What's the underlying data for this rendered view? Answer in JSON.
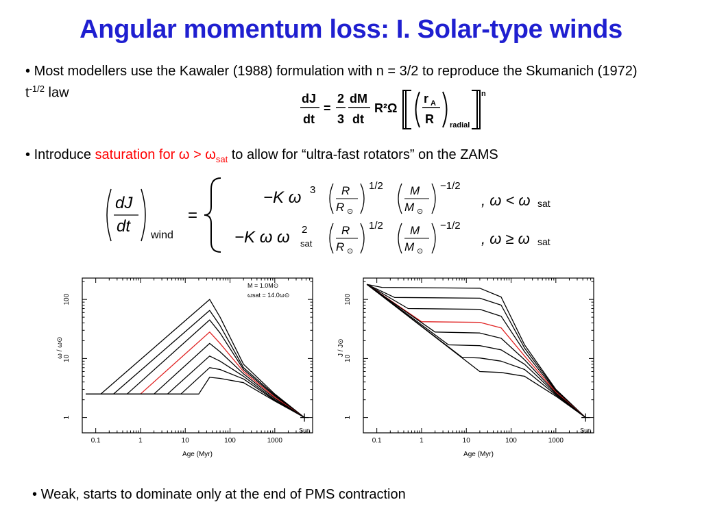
{
  "slide": {
    "title": "Angular momentum loss: I. Solar-type winds",
    "title_color": "#1f1fd0",
    "bullet1": {
      "marker": "•",
      "text": "Most modellers use the Kawaler (1988) formulation with n = 3/2 to reproduce the Skumanich (1972) t",
      "superscript": "-1/2",
      "suffix": " law"
    },
    "bullet2": {
      "marker": "•",
      "prefix": "Introduce ",
      "highlight": "saturation for ω > ω",
      "highlight_sub": "sat",
      "suffix": " to allow for “ultra-fast rotators” on the ZAMS",
      "highlight_color": "#ff0000"
    },
    "bullet3": {
      "marker": "•",
      "text": "Weak, starts to dominate only at the end of  PMS contraction"
    }
  },
  "equation1": {
    "lhs_num": "dJ",
    "lhs_den": "dt",
    "eq": "=",
    "c_num": "2",
    "c_den": "3",
    "dm_num": "dM",
    "dm_den": "dt",
    "r2omega": "R²Ω",
    "ra": "r",
    "ra_sub": "A",
    "rr": "R",
    "radial": "radial",
    "n": "n"
  },
  "equation2": {
    "lhs_num": "dJ",
    "lhs_den": "dt",
    "wind": "wind",
    "eq": "=",
    "row1_coef": "−K  ω",
    "row1_pow": "3",
    "row2_coef": "−K  ω  ω",
    "row2_pow": "2",
    "row2_sub": "sat",
    "half": "1/2",
    "mhalf": "−1/2",
    "R": "R",
    "Rsun": "R",
    "sun_sub": "⊙",
    "M": "M",
    "Msun": "M",
    "cond1": ", ω < ω",
    "cond2": ", ω ≥ ω",
    "cond_sub": "sat"
  },
  "chart_data": [
    {
      "type": "line",
      "x_scale": "log",
      "y_scale": "log",
      "xlim": [
        0.05,
        7000
      ],
      "ylim": [
        0.55,
        230
      ],
      "xlabel": "Age (Myr)",
      "ylabel": "ω / ω⊙",
      "x_ticks": [
        "0.1",
        "1",
        "10",
        "100",
        "1000"
      ],
      "y_ticks": [
        "1",
        "10",
        "100"
      ],
      "legend": [
        "M    =  1.0M⊙",
        "ωsat  =  14.0ω⊙"
      ],
      "annotation": "Sun",
      "highlight_color": "#e02020",
      "series": [
        {
          "values": [
            [
              0.06,
              2.5
            ],
            [
              0.13,
              2.5
            ],
            [
              35,
              100
            ],
            [
              60,
              50
            ],
            [
              200,
              8
            ],
            [
              1000,
              2.5
            ],
            [
              4600,
              1.0
            ]
          ]
        },
        {
          "values": [
            [
              0.06,
              2.5
            ],
            [
              0.25,
              2.5
            ],
            [
              35,
              65
            ],
            [
              60,
              36
            ],
            [
              200,
              7
            ],
            [
              1000,
              2.4
            ],
            [
              4600,
              1.0
            ]
          ]
        },
        {
          "values": [
            [
              0.06,
              2.5
            ],
            [
              0.5,
              2.5
            ],
            [
              35,
              45
            ],
            [
              60,
              27
            ],
            [
              200,
              6.5
            ],
            [
              1000,
              2.3
            ],
            [
              4600,
              1.0
            ]
          ]
        },
        {
          "highlight": true,
          "values": [
            [
              0.06,
              2.5
            ],
            [
              1,
              2.5
            ],
            [
              35,
              28
            ],
            [
              60,
              18
            ],
            [
              200,
              6
            ],
            [
              1000,
              2.2
            ],
            [
              4600,
              1.0
            ]
          ]
        },
        {
          "values": [
            [
              0.06,
              2.5
            ],
            [
              2,
              2.5
            ],
            [
              35,
              18
            ],
            [
              60,
              13
            ],
            [
              200,
              5.5
            ],
            [
              1000,
              2.1
            ],
            [
              4600,
              1.0
            ]
          ]
        },
        {
          "values": [
            [
              0.06,
              2.5
            ],
            [
              4,
              2.5
            ],
            [
              35,
              11
            ],
            [
              60,
              9
            ],
            [
              200,
              5
            ],
            [
              1000,
              2.0
            ],
            [
              4600,
              1.0
            ]
          ]
        },
        {
          "values": [
            [
              0.06,
              2.5
            ],
            [
              8,
              2.5
            ],
            [
              35,
              7
            ],
            [
              60,
              6.5
            ],
            [
              200,
              4.5
            ],
            [
              1000,
              1.95
            ],
            [
              4600,
              1.0
            ]
          ]
        },
        {
          "values": [
            [
              0.06,
              2.5
            ],
            [
              20,
              2.5
            ],
            [
              35,
              4.8
            ],
            [
              60,
              4.6
            ],
            [
              200,
              3.9
            ],
            [
              1000,
              1.9
            ],
            [
              4600,
              1.0
            ]
          ]
        }
      ]
    },
    {
      "type": "line",
      "x_scale": "log",
      "y_scale": "log",
      "xlim": [
        0.05,
        7000
      ],
      "ylim": [
        0.55,
        230
      ],
      "xlabel": "Age (Myr)",
      "ylabel": "J / J⊙",
      "x_ticks": [
        "0.1",
        "1",
        "10",
        "100",
        "1000"
      ],
      "y_ticks": [
        "1",
        "10",
        "100"
      ],
      "annotation": "Sun",
      "highlight_color": "#e02020",
      "series": [
        {
          "values": [
            [
              0.06,
              180
            ],
            [
              0.13,
              160
            ],
            [
              20,
              155
            ],
            [
              60,
              110
            ],
            [
              200,
              17
            ],
            [
              1000,
              3.0
            ],
            [
              4600,
              1.0
            ]
          ]
        },
        {
          "values": [
            [
              0.06,
              180
            ],
            [
              0.25,
              108
            ],
            [
              20,
              105
            ],
            [
              60,
              80
            ],
            [
              200,
              15
            ],
            [
              1000,
              2.9
            ],
            [
              4600,
              1.0
            ]
          ]
        },
        {
          "values": [
            [
              0.06,
              180
            ],
            [
              0.5,
              70
            ],
            [
              20,
              68
            ],
            [
              60,
              52
            ],
            [
              200,
              13
            ],
            [
              1000,
              2.8
            ],
            [
              4600,
              1.0
            ]
          ]
        },
        {
          "highlight": true,
          "values": [
            [
              0.06,
              180
            ],
            [
              1,
              42
            ],
            [
              20,
              41
            ],
            [
              60,
              33
            ],
            [
              200,
              11
            ],
            [
              1000,
              2.7
            ],
            [
              4600,
              1.0
            ]
          ]
        },
        {
          "values": [
            [
              0.06,
              180
            ],
            [
              2,
              28
            ],
            [
              20,
              27
            ],
            [
              60,
              22
            ],
            [
              200,
              9.5
            ],
            [
              1000,
              2.6
            ],
            [
              4600,
              1.0
            ]
          ]
        },
        {
          "values": [
            [
              0.06,
              180
            ],
            [
              4,
              17
            ],
            [
              20,
              16.5
            ],
            [
              60,
              14
            ],
            [
              200,
              8
            ],
            [
              1000,
              2.5
            ],
            [
              4600,
              1.0
            ]
          ]
        },
        {
          "values": [
            [
              0.06,
              180
            ],
            [
              8,
              10.5
            ],
            [
              20,
              10.2
            ],
            [
              60,
              9
            ],
            [
              200,
              6.5
            ],
            [
              1000,
              2.4
            ],
            [
              4600,
              1.0
            ]
          ]
        },
        {
          "values": [
            [
              0.06,
              180
            ],
            [
              20,
              6
            ],
            [
              60,
              5.8
            ],
            [
              200,
              5
            ],
            [
              1000,
              2.3
            ],
            [
              4600,
              1.0
            ]
          ]
        }
      ]
    }
  ]
}
